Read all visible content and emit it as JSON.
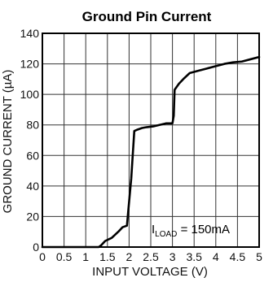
{
  "chart_data": {
    "type": "line",
    "title": "Ground Pin Current",
    "xlabel": "INPUT VOLTAGE (V)",
    "ylabel": "GROUND CURRENT (µA)",
    "xlim": [
      0,
      5
    ],
    "ylim": [
      0,
      140
    ],
    "x_ticks": [
      0,
      0.5,
      1,
      1.5,
      2,
      2.5,
      3,
      3.5,
      4,
      4.5,
      5
    ],
    "x_tick_labels": [
      "0",
      "0.5",
      "1",
      "1.5",
      "2",
      "2.5",
      "3",
      "3.5",
      "4",
      "4.5",
      "5"
    ],
    "y_ticks": [
      0,
      20,
      40,
      60,
      80,
      100,
      120,
      140
    ],
    "y_tick_labels": [
      "0",
      "20",
      "40",
      "60",
      "80",
      "100",
      "120",
      "140"
    ],
    "grid": true,
    "annotation": {
      "prefix": "I",
      "subscript": "LOAD",
      "suffix": " = 150mA"
    },
    "series": [
      {
        "color": "#000000",
        "x": [
          0,
          1.0,
          1.3,
          1.35,
          1.45,
          1.6,
          1.75,
          1.85,
          1.95,
          2.05,
          2.12,
          2.2,
          2.3,
          2.4,
          2.55,
          2.7,
          2.85,
          3.0,
          3.03,
          3.05,
          3.15,
          3.25,
          3.4,
          3.6,
          3.8,
          4.0,
          4.2,
          4.4,
          4.6,
          4.8,
          5.0
        ],
        "y": [
          0,
          0,
          0,
          1,
          4,
          6,
          10,
          13,
          14,
          45,
          76,
          77,
          78,
          78.5,
          79,
          80,
          81,
          81,
          86,
          103,
          107,
          110,
          114,
          115.5,
          117,
          118.5,
          120,
          121,
          121.5,
          123,
          124.5
        ]
      }
    ]
  }
}
